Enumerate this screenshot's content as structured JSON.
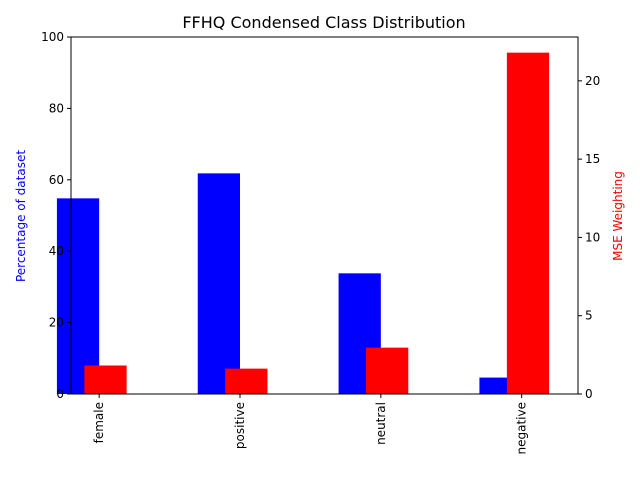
{
  "chart_data": {
    "type": "bar",
    "title": "FFHQ Condensed Class Distribution",
    "categories": [
      "female",
      "positive",
      "neutral",
      "negative"
    ],
    "series": [
      {
        "axis": "left",
        "color": "#0000ff",
        "values": [
          54.8,
          61.8,
          33.8,
          4.6
        ]
      },
      {
        "axis": "right",
        "color": "#ff0000",
        "values": [
          1.82,
          1.62,
          2.96,
          21.8
        ]
      }
    ],
    "ylabel_left": "Percentage of dataset",
    "ylabel_left_color": "#0000ff",
    "ylim_left": [
      0,
      100
    ],
    "yticks_left": [
      0,
      20,
      40,
      60,
      80,
      100
    ],
    "ylabel_right": "MSE Weighting",
    "ylabel_right_color": "#ff0000",
    "ylim_right": [
      0,
      22.8
    ],
    "yticks_right": [
      0,
      5,
      10,
      15,
      20
    ],
    "xtick_rotation": 90,
    "grid": false,
    "legend": "none"
  }
}
